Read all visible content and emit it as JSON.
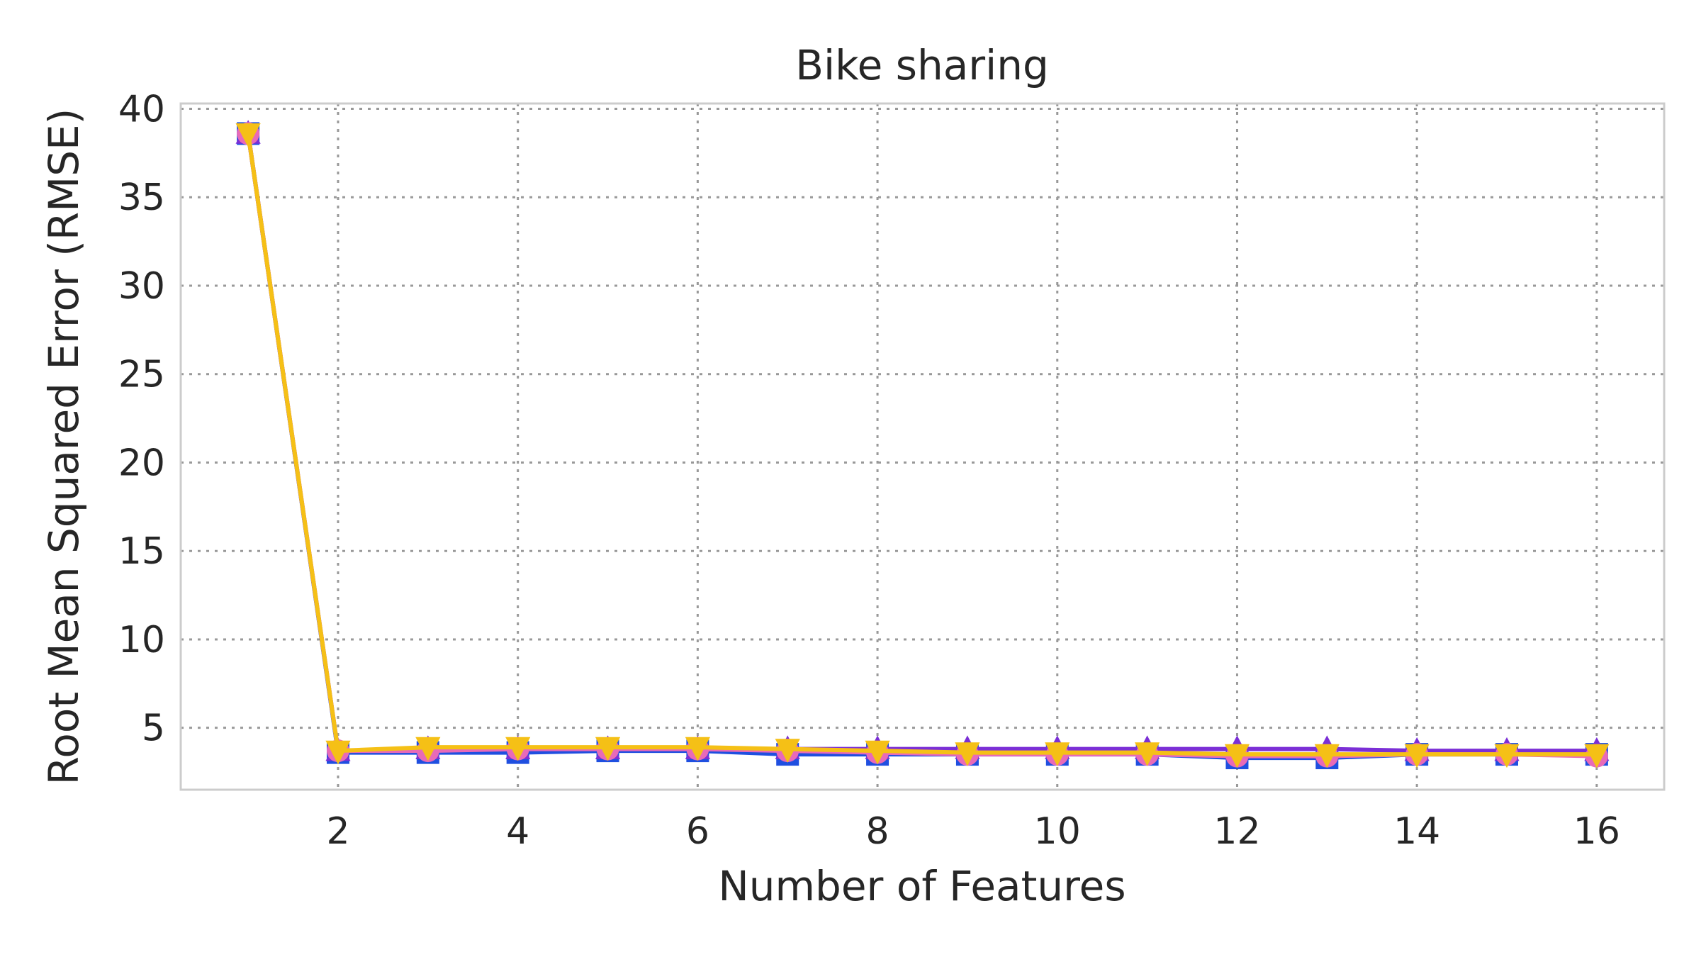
{
  "chart_data": {
    "type": "line",
    "title": "Bike sharing",
    "xlabel": "Number of Features",
    "ylabel": "Root Mean Squared Error (RMSE)",
    "xlim": [
      0.25,
      16.75
    ],
    "ylim": [
      1.5,
      40.3
    ],
    "x": [
      1,
      2,
      3,
      4,
      5,
      6,
      7,
      8,
      9,
      10,
      11,
      12,
      13,
      14,
      15,
      16
    ],
    "xticks": [
      2,
      4,
      6,
      8,
      10,
      12,
      14,
      16
    ],
    "yticks": [
      5,
      10,
      15,
      20,
      25,
      30,
      35,
      40
    ],
    "grid": true,
    "grid_style": "dotted",
    "legend": "none",
    "series": [
      {
        "color": "#1f4fe0",
        "marker": "square",
        "values": [
          38.6,
          3.6,
          3.6,
          3.6,
          3.7,
          3.7,
          3.5,
          3.5,
          3.5,
          3.5,
          3.5,
          3.3,
          3.3,
          3.5,
          3.5,
          3.5
        ]
      },
      {
        "color": "#7b2fd6",
        "marker": "triangle-up",
        "values": [
          38.6,
          3.7,
          3.8,
          3.8,
          3.8,
          3.8,
          3.8,
          3.8,
          3.8,
          3.8,
          3.8,
          3.8,
          3.8,
          3.7,
          3.7,
          3.7
        ]
      },
      {
        "color": "#e86ab8",
        "marker": "circle",
        "values": [
          38.6,
          3.7,
          3.7,
          3.8,
          3.8,
          3.8,
          3.7,
          3.6,
          3.5,
          3.5,
          3.5,
          3.4,
          3.4,
          3.5,
          3.5,
          3.4
        ]
      },
      {
        "color": "#f5c016",
        "marker": "triangle-down",
        "values": [
          38.6,
          3.7,
          3.9,
          3.9,
          3.9,
          3.9,
          3.8,
          3.7,
          3.6,
          3.6,
          3.6,
          3.5,
          3.5,
          3.5,
          3.5,
          3.5
        ]
      }
    ]
  }
}
